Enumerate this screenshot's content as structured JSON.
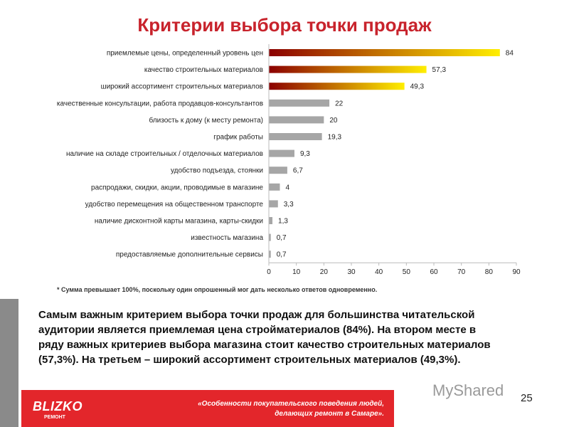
{
  "title": "Критерии выбора точки продаж",
  "chart_data": {
    "type": "bar",
    "orientation": "horizontal",
    "categories": [
      "приемлемые цены, определенный уровень цен",
      "качество строительных материалов",
      "широкий ассортимент строительных материалов",
      "качественные консультации, работа продавцов-консультантов",
      "близость к дому (к месту ремонта)",
      "график работы",
      "наличие на складе строительных / отделочных материалов",
      "удобство подъезда, стоянки",
      "распродажи, скидки, акции, проводимые в магазине",
      "удобство перемещения на общественном транспорте",
      "наличие дисконтной карты магазина, карты-скидки",
      "известность магазина",
      "предоставляемые дополнительные сервисы"
    ],
    "values": [
      84,
      57.3,
      49.3,
      22,
      20,
      19.3,
      9.3,
      6.7,
      4,
      3.3,
      1.3,
      0.7,
      0.7
    ],
    "value_labels": [
      "84",
      "57,3",
      "49,3",
      "22",
      "20",
      "19,3",
      "9,3",
      "6,7",
      "4",
      "3,3",
      "1,3",
      "0,7",
      "0,7"
    ],
    "xlim": [
      0,
      90
    ],
    "xticks": [
      0,
      10,
      20,
      30,
      40,
      50,
      60,
      70,
      80,
      90
    ],
    "grid": false,
    "colors": {
      "highlight_start": "#8b0000",
      "highlight_end": "#ffee00",
      "other": "#a6a6a6"
    }
  },
  "footnote": "* Сумма превышает 100%, поскольку один опрошенный мог дать несколько ответов одновременно.",
  "summary": "Самым важным критерием выбора точки продаж для большинства читательской аудитории является приемлемая цена стройматериалов (84%). На втором месте в ряду важных критериев выбора магазина стоит качество строительных материалов (57,3%). На третьем – широкий ассортимент строительных материалов (49,3%).",
  "footer": {
    "logo": "BLIZKO",
    "logo_sub": "РЕМОНТ",
    "line1": "«Особенности покупательского поведения людей,",
    "line2": "делающих ремонт в Самаре».",
    "page_number": "25",
    "watermark": "MyShared"
  }
}
